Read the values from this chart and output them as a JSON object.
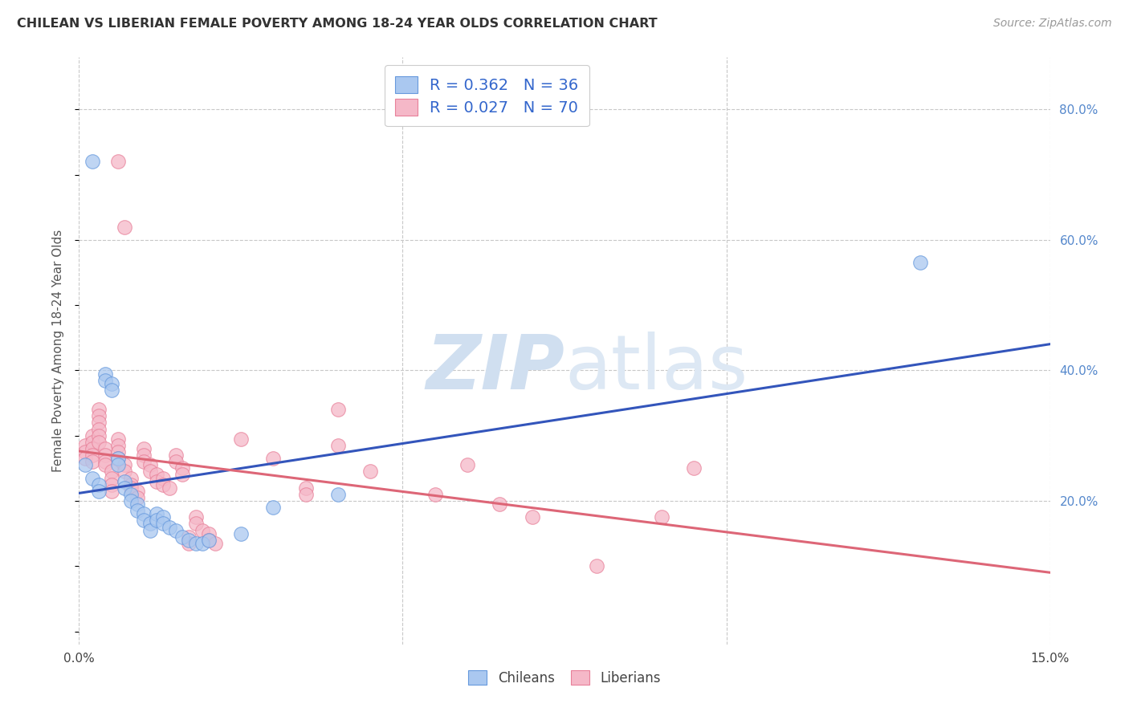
{
  "title": "CHILEAN VS LIBERIAN FEMALE POVERTY AMONG 18-24 YEAR OLDS CORRELATION CHART",
  "source": "Source: ZipAtlas.com",
  "ylabel": "Female Poverty Among 18-24 Year Olds",
  "xlim": [
    0.0,
    0.15
  ],
  "ylim": [
    -0.02,
    0.88
  ],
  "xtick_vals": [
    0.0,
    0.05,
    0.1,
    0.15
  ],
  "xtick_labels": [
    "0.0%",
    "",
    "",
    "15.0%"
  ],
  "ytick_right_vals": [
    0.2,
    0.4,
    0.6,
    0.8
  ],
  "ytick_right_labels": [
    "20.0%",
    "40.0%",
    "60.0%",
    "80.0%"
  ],
  "background_color": "#ffffff",
  "grid_color": "#c8c8c8",
  "chilean_color": "#aac8f0",
  "liberian_color": "#f5b8c8",
  "chilean_edge_color": "#6699dd",
  "liberian_edge_color": "#e88099",
  "chilean_line_color": "#3355bb",
  "liberian_line_color": "#dd6677",
  "watermark_color": "#d0dff0",
  "chilean_dots": [
    [
      0.001,
      0.255
    ],
    [
      0.002,
      0.235
    ],
    [
      0.002,
      0.72
    ],
    [
      0.003,
      0.225
    ],
    [
      0.003,
      0.215
    ],
    [
      0.004,
      0.395
    ],
    [
      0.004,
      0.385
    ],
    [
      0.005,
      0.38
    ],
    [
      0.005,
      0.37
    ],
    [
      0.006,
      0.265
    ],
    [
      0.006,
      0.255
    ],
    [
      0.007,
      0.23
    ],
    [
      0.007,
      0.22
    ],
    [
      0.008,
      0.21
    ],
    [
      0.008,
      0.2
    ],
    [
      0.009,
      0.195
    ],
    [
      0.009,
      0.185
    ],
    [
      0.01,
      0.18
    ],
    [
      0.01,
      0.17
    ],
    [
      0.011,
      0.165
    ],
    [
      0.011,
      0.155
    ],
    [
      0.012,
      0.18
    ],
    [
      0.012,
      0.17
    ],
    [
      0.013,
      0.175
    ],
    [
      0.013,
      0.165
    ],
    [
      0.014,
      0.16
    ],
    [
      0.015,
      0.155
    ],
    [
      0.016,
      0.145
    ],
    [
      0.017,
      0.14
    ],
    [
      0.018,
      0.135
    ],
    [
      0.019,
      0.135
    ],
    [
      0.02,
      0.14
    ],
    [
      0.025,
      0.15
    ],
    [
      0.03,
      0.19
    ],
    [
      0.04,
      0.21
    ],
    [
      0.13,
      0.565
    ]
  ],
  "liberian_dots": [
    [
      0.001,
      0.285
    ],
    [
      0.001,
      0.275
    ],
    [
      0.001,
      0.265
    ],
    [
      0.002,
      0.3
    ],
    [
      0.002,
      0.29
    ],
    [
      0.002,
      0.28
    ],
    [
      0.002,
      0.27
    ],
    [
      0.002,
      0.26
    ],
    [
      0.003,
      0.34
    ],
    [
      0.003,
      0.33
    ],
    [
      0.003,
      0.32
    ],
    [
      0.003,
      0.31
    ],
    [
      0.003,
      0.3
    ],
    [
      0.003,
      0.29
    ],
    [
      0.004,
      0.28
    ],
    [
      0.004,
      0.27
    ],
    [
      0.004,
      0.26
    ],
    [
      0.004,
      0.255
    ],
    [
      0.005,
      0.245
    ],
    [
      0.005,
      0.235
    ],
    [
      0.005,
      0.225
    ],
    [
      0.005,
      0.215
    ],
    [
      0.006,
      0.295
    ],
    [
      0.006,
      0.285
    ],
    [
      0.006,
      0.275
    ],
    [
      0.006,
      0.265
    ],
    [
      0.006,
      0.72
    ],
    [
      0.007,
      0.62
    ],
    [
      0.007,
      0.255
    ],
    [
      0.007,
      0.245
    ],
    [
      0.008,
      0.235
    ],
    [
      0.008,
      0.225
    ],
    [
      0.008,
      0.22
    ],
    [
      0.009,
      0.215
    ],
    [
      0.009,
      0.205
    ],
    [
      0.01,
      0.28
    ],
    [
      0.01,
      0.27
    ],
    [
      0.01,
      0.26
    ],
    [
      0.011,
      0.255
    ],
    [
      0.011,
      0.245
    ],
    [
      0.012,
      0.24
    ],
    [
      0.012,
      0.23
    ],
    [
      0.013,
      0.235
    ],
    [
      0.013,
      0.225
    ],
    [
      0.014,
      0.22
    ],
    [
      0.015,
      0.27
    ],
    [
      0.015,
      0.26
    ],
    [
      0.016,
      0.25
    ],
    [
      0.016,
      0.24
    ],
    [
      0.017,
      0.145
    ],
    [
      0.017,
      0.135
    ],
    [
      0.018,
      0.175
    ],
    [
      0.018,
      0.165
    ],
    [
      0.019,
      0.155
    ],
    [
      0.02,
      0.15
    ],
    [
      0.02,
      0.14
    ],
    [
      0.021,
      0.135
    ],
    [
      0.025,
      0.295
    ],
    [
      0.03,
      0.265
    ],
    [
      0.035,
      0.22
    ],
    [
      0.035,
      0.21
    ],
    [
      0.04,
      0.34
    ],
    [
      0.04,
      0.285
    ],
    [
      0.045,
      0.245
    ],
    [
      0.055,
      0.21
    ],
    [
      0.06,
      0.255
    ],
    [
      0.065,
      0.195
    ],
    [
      0.07,
      0.175
    ],
    [
      0.08,
      0.1
    ],
    [
      0.09,
      0.175
    ],
    [
      0.095,
      0.25
    ]
  ]
}
